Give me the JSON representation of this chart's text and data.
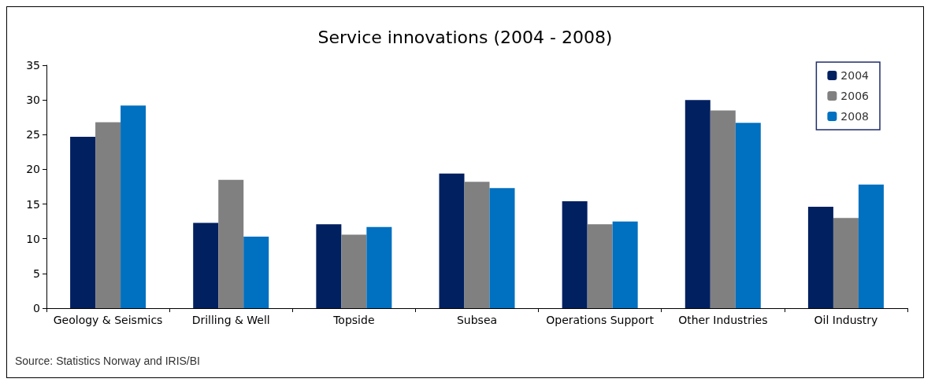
{
  "chart_data": {
    "type": "bar",
    "title": "Service innovations (2004 - 2008)",
    "categories": [
      "Geology & Seismics",
      "Drilling & Well",
      "Topside",
      "Subsea",
      "Operations Support",
      "Other Industries",
      "Oil Industry"
    ],
    "series": [
      {
        "name": "2004",
        "color": "#002060",
        "values": [
          24.7,
          12.3,
          12.1,
          19.4,
          15.4,
          30.0,
          14.6
        ]
      },
      {
        "name": "2006",
        "color": "#808080",
        "values": [
          26.8,
          18.5,
          10.6,
          18.2,
          12.1,
          28.5,
          13.0
        ]
      },
      {
        "name": "2008",
        "color": "#0070c0",
        "values": [
          29.2,
          10.3,
          11.7,
          17.3,
          12.5,
          26.7,
          17.8
        ]
      }
    ],
    "ylim": [
      0,
      35
    ],
    "yticks": [
      0,
      5,
      10,
      15,
      20,
      25,
      30,
      35
    ],
    "grid": false,
    "legend": "top right",
    "annotations": [
      "Source: Statistics Norway and IRIS/BI"
    ]
  }
}
